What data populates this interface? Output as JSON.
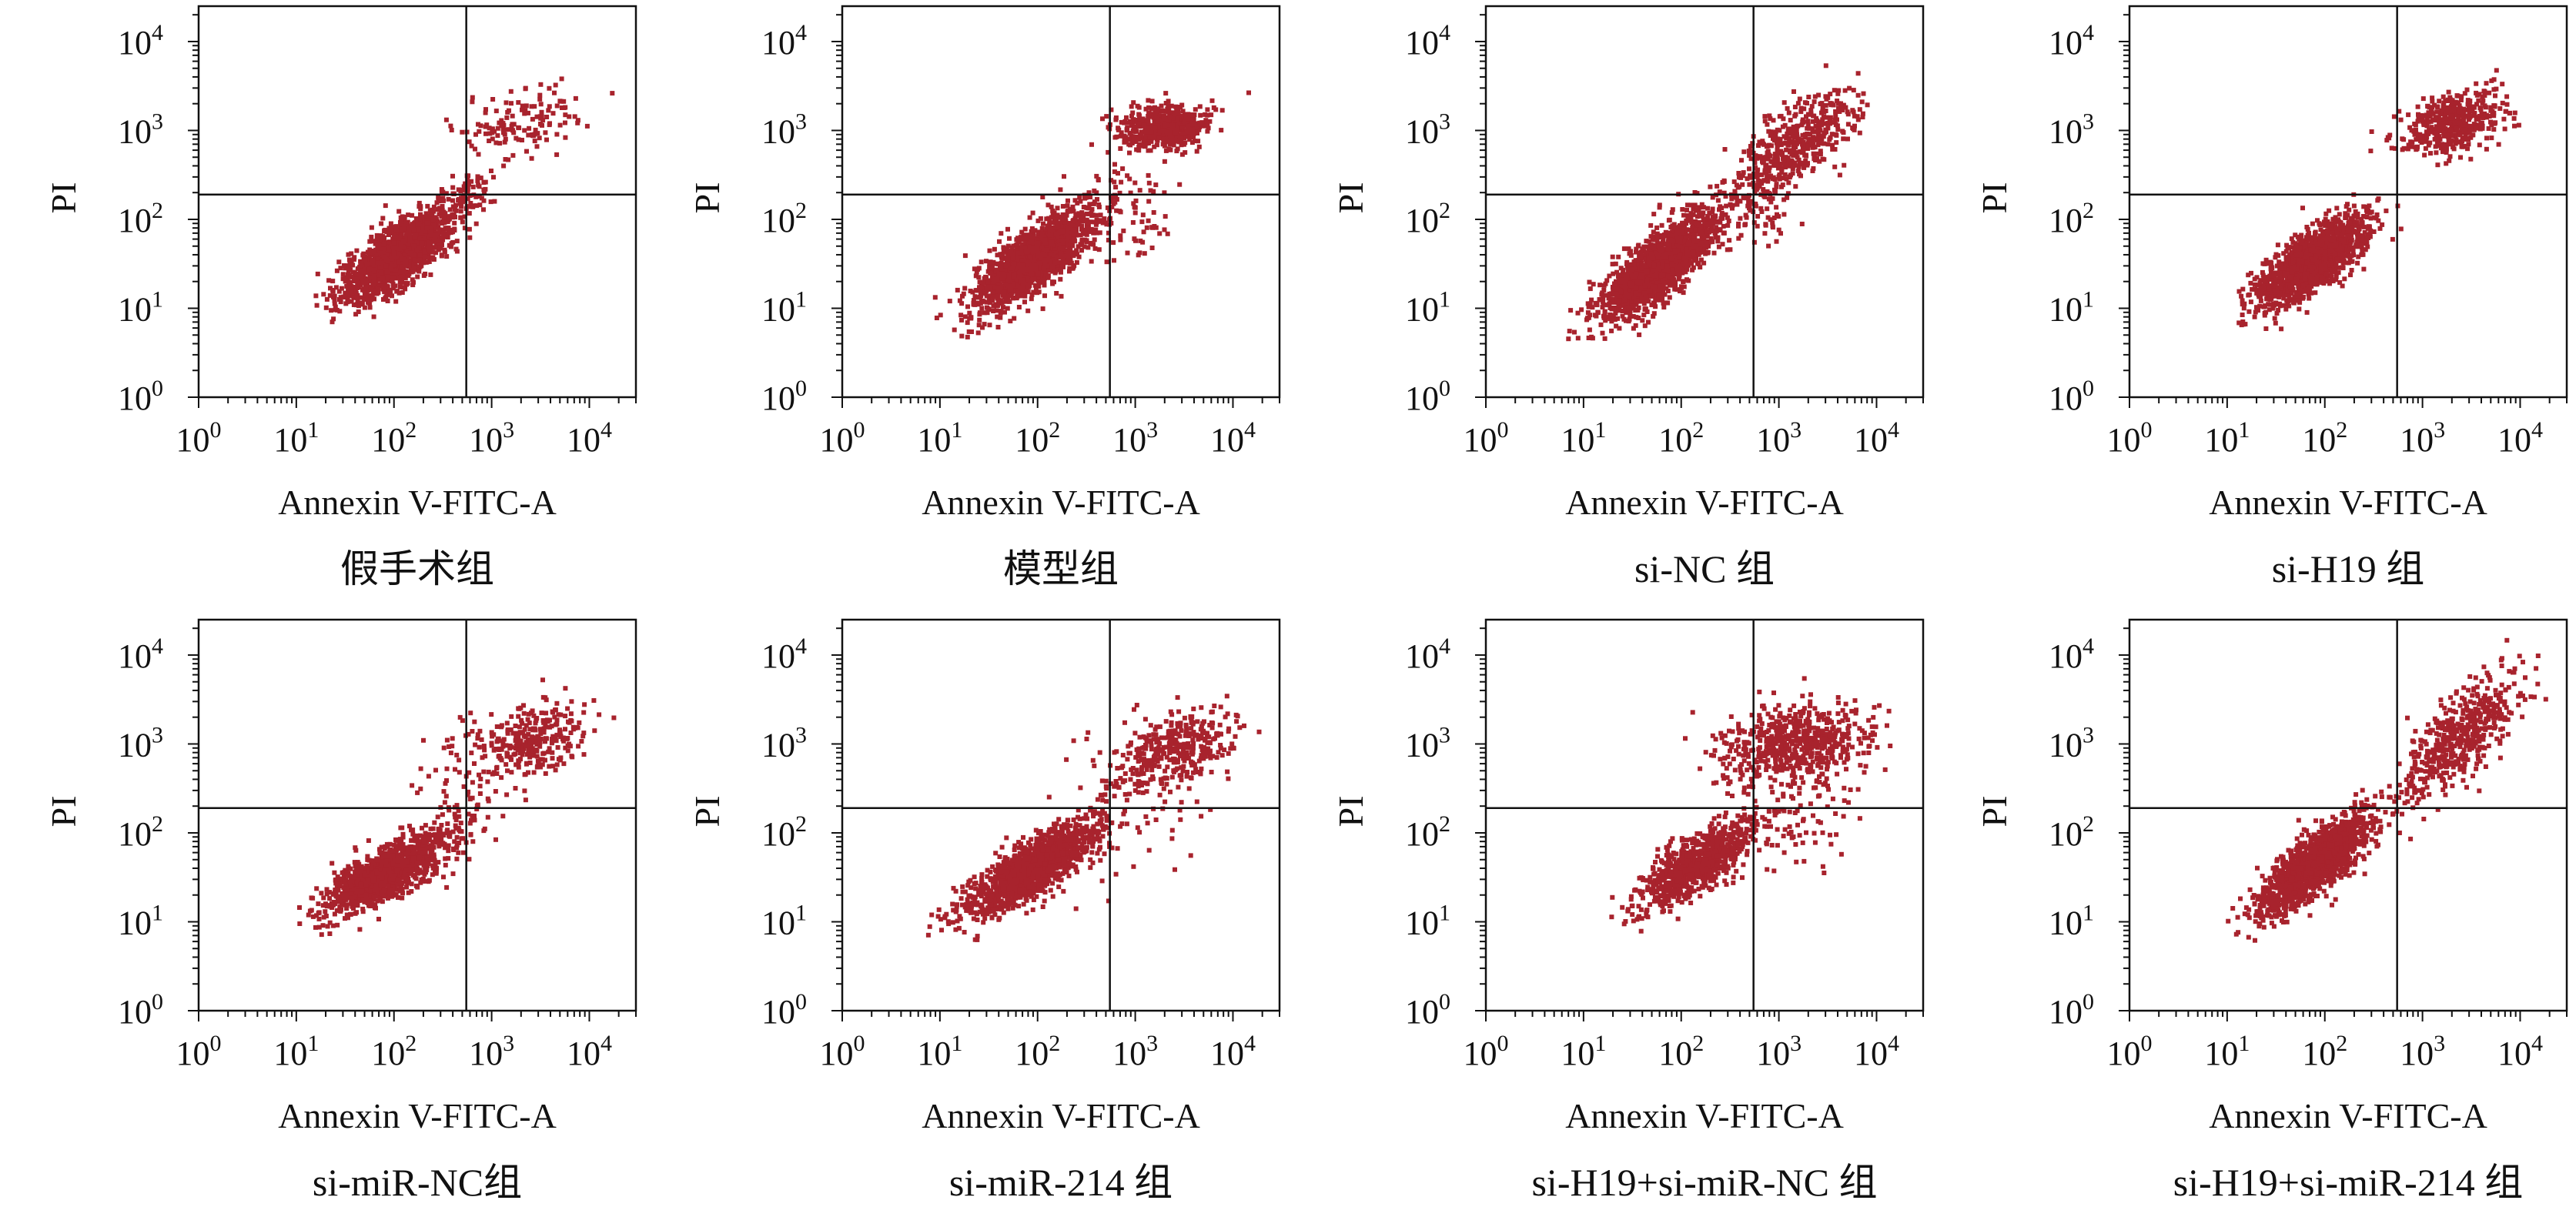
{
  "colors": {
    "dots": "#a8232d",
    "frame": "#111111",
    "gate": "#111111"
  },
  "axis_style": {
    "xscale": "log",
    "yscale": "log",
    "xlim": [
      1,
      30000
    ],
    "ylim": [
      1,
      25000
    ],
    "quadrant_gate": {
      "x": 550,
      "y": 190
    }
  },
  "tick_labels": {
    "x": [
      "10",
      "10",
      "10",
      "10",
      "10"
    ],
    "x_exp": [
      "0",
      "1",
      "2",
      "3",
      "4"
    ],
    "y": [
      "10",
      "10",
      "10",
      "10",
      "10"
    ],
    "y_exp": [
      "0",
      "1",
      "2",
      "3",
      "4"
    ]
  },
  "chart_data": [
    {
      "type": "scatter",
      "xlabel": "Annexin V-FITC-A",
      "ylabel": "PI",
      "caption": "假手术组",
      "clusters": [
        {
          "cx": 110,
          "cy": 40,
          "sx": 0.28,
          "sy": 0.26,
          "corr": 0.75,
          "n": 1500
        },
        {
          "cx": 2000,
          "cy": 1200,
          "sx": 0.35,
          "sy": 0.2,
          "corr": 0.3,
          "n": 140
        },
        {
          "cx": 600,
          "cy": 200,
          "sx": 0.12,
          "sy": 0.12,
          "corr": 0.0,
          "n": 60
        }
      ]
    },
    {
      "type": "scatter",
      "xlabel": "Annexin V-FITC-A",
      "ylabel": "PI",
      "caption": "模型组",
      "clusters": [
        {
          "cx": 90,
          "cy": 35,
          "sx": 0.3,
          "sy": 0.28,
          "corr": 0.75,
          "n": 1500
        },
        {
          "cx": 2000,
          "cy": 1100,
          "sx": 0.22,
          "sy": 0.12,
          "corr": 0.1,
          "n": 550
        },
        {
          "cx": 900,
          "cy": 120,
          "sx": 0.2,
          "sy": 0.3,
          "corr": 0.0,
          "n": 80
        }
      ]
    },
    {
      "type": "scatter",
      "xlabel": "Annexin V-FITC-A",
      "ylabel": "PI",
      "caption": "si-NC 组",
      "clusters": [
        {
          "cx": 60,
          "cy": 30,
          "sx": 0.3,
          "sy": 0.3,
          "corr": 0.8,
          "n": 1500
        },
        {
          "cx": 1500,
          "cy": 700,
          "sx": 0.3,
          "sy": 0.3,
          "corr": 0.7,
          "n": 500
        },
        {
          "cx": 700,
          "cy": 130,
          "sx": 0.15,
          "sy": 0.2,
          "corr": 0.0,
          "n": 60
        }
      ]
    },
    {
      "type": "scatter",
      "xlabel": "Annexin V-FITC-A",
      "ylabel": "PI",
      "caption": "si-H19 组",
      "clusters": [
        {
          "cx": 80,
          "cy": 35,
          "sx": 0.28,
          "sy": 0.25,
          "corr": 0.75,
          "n": 1500
        },
        {
          "cx": 2000,
          "cy": 1200,
          "sx": 0.25,
          "sy": 0.18,
          "corr": 0.4,
          "n": 450
        }
      ]
    },
    {
      "type": "scatter",
      "xlabel": "Annexin V-FITC-A",
      "ylabel": "PI",
      "caption": "si-miR-NC组",
      "clusters": [
        {
          "cx": 80,
          "cy": 35,
          "sx": 0.3,
          "sy": 0.22,
          "corr": 0.75,
          "n": 1300
        },
        {
          "cx": 2500,
          "cy": 1100,
          "sx": 0.3,
          "sy": 0.22,
          "corr": 0.4,
          "n": 300
        },
        {
          "cx": 500,
          "cy": 250,
          "sx": 0.25,
          "sy": 0.4,
          "corr": 0.0,
          "n": 80
        }
      ]
    },
    {
      "type": "scatter",
      "xlabel": "Annexin V-FITC-A",
      "ylabel": "PI",
      "caption": "si-miR-214 组",
      "clusters": [
        {
          "cx": 90,
          "cy": 40,
          "sx": 0.32,
          "sy": 0.25,
          "corr": 0.8,
          "n": 1400
        },
        {
          "cx": 2500,
          "cy": 900,
          "sx": 0.3,
          "sy": 0.22,
          "corr": 0.4,
          "n": 350
        },
        {
          "cx": 1000,
          "cy": 250,
          "sx": 0.4,
          "sy": 0.4,
          "corr": 0.0,
          "n": 90
        }
      ]
    },
    {
      "type": "scatter",
      "xlabel": "Annexin V-FITC-A",
      "ylabel": "PI",
      "caption": "si-H19+si-miR-NC 组",
      "clusters": [
        {
          "cx": 150,
          "cy": 45,
          "sx": 0.3,
          "sy": 0.25,
          "corr": 0.75,
          "n": 800
        },
        {
          "cx": 1500,
          "cy": 1000,
          "sx": 0.4,
          "sy": 0.22,
          "corr": 0.2,
          "n": 600
        },
        {
          "cx": 1500,
          "cy": 150,
          "sx": 0.3,
          "sy": 0.3,
          "corr": 0.0,
          "n": 80
        }
      ]
    },
    {
      "type": "scatter",
      "xlabel": "Annexin V-FITC-A",
      "ylabel": "PI",
      "caption": "si-H19+si-miR-214 组",
      "clusters": [
        {
          "cx": 80,
          "cy": 45,
          "sx": 0.28,
          "sy": 0.28,
          "corr": 0.8,
          "n": 1400
        },
        {
          "cx": 2500,
          "cy": 1200,
          "sx": 0.3,
          "sy": 0.35,
          "corr": 0.7,
          "n": 500
        }
      ]
    }
  ]
}
